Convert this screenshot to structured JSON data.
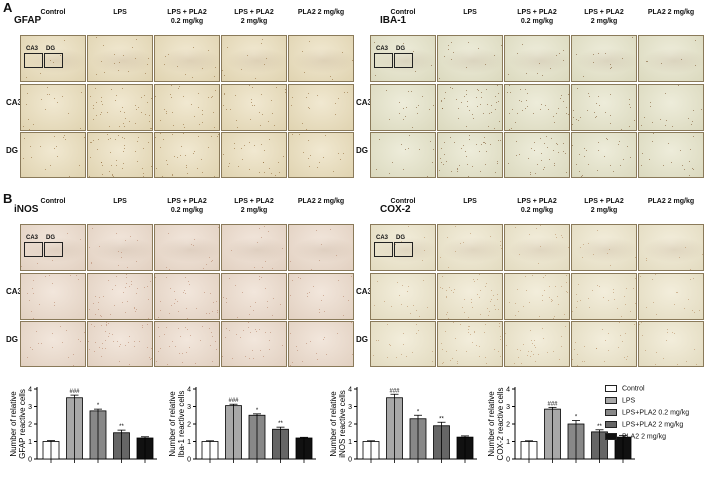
{
  "panels": [
    {
      "letter": "A",
      "title": "GFAP"
    },
    {
      "letter": "",
      "title": "IBA-1"
    },
    {
      "letter": "B",
      "title": "iNOS"
    },
    {
      "letter": "",
      "title": "COX-2"
    }
  ],
  "column_headers": [
    "Control",
    "LPS",
    "LPS + PLA2\n0.2 mg/kg",
    "LPS + PLA2\n2 mg/kg",
    "PLA2 2 mg/kg"
  ],
  "row_labels": [
    "CA3",
    "DG"
  ],
  "roi_labels": [
    "CA3",
    "DG"
  ],
  "legend": {
    "items": [
      "Control",
      "LPS",
      "LPS+PLA2 0.2 mg/kg",
      "LPS+PLA2 2 mg/kg",
      "PLA2 2 mg/kg"
    ],
    "colors": [
      "#ffffff",
      "#a8a8a8",
      "#888888",
      "#666666",
      "#111111"
    ]
  },
  "chart_data": [
    {
      "type": "bar",
      "ylabel": "Number of relative\nGFAP reactive cells",
      "categories": [
        "Control",
        "LPS",
        "LPS+PLA2 0.2 mg/kg",
        "LPS+PLA2 2 mg/kg",
        "PLA2 2 mg/kg"
      ],
      "values": [
        1.0,
        3.5,
        2.75,
        1.5,
        1.2
      ],
      "errors": [
        0.05,
        0.15,
        0.1,
        0.15,
        0.07
      ],
      "ylim": [
        0,
        4
      ],
      "yticks": [
        "0",
        "1",
        "2",
        "3",
        "4"
      ],
      "annotations": [
        "",
        "###",
        "*",
        "**",
        ""
      ]
    },
    {
      "type": "bar",
      "ylabel": "Number of relative\nIba-1 reactive cells",
      "categories": [
        "Control",
        "LPS",
        "LPS+PLA2 0.2 mg/kg",
        "LPS+PLA2 2 mg/kg",
        "PLA2 2 mg/kg"
      ],
      "values": [
        1.0,
        3.05,
        2.5,
        1.7,
        1.2
      ],
      "errors": [
        0.04,
        0.08,
        0.08,
        0.12,
        0.04
      ],
      "ylim": [
        0,
        4
      ],
      "yticks": [
        "0",
        "1",
        "2",
        "3",
        "4"
      ],
      "annotations": [
        "",
        "###",
        "*",
        "**",
        ""
      ]
    },
    {
      "type": "bar",
      "ylabel": "Number of relative\niNOS reactive cells",
      "categories": [
        "Control",
        "LPS",
        "LPS+PLA2 0.2 mg/kg",
        "LPS+PLA2 2 mg/kg",
        "PLA2 2 mg/kg"
      ],
      "values": [
        1.0,
        3.5,
        2.3,
        1.9,
        1.25
      ],
      "errors": [
        0.04,
        0.2,
        0.2,
        0.2,
        0.07
      ],
      "ylim": [
        0,
        4
      ],
      "yticks": [
        "0",
        "1",
        "2",
        "3",
        "4"
      ],
      "annotations": [
        "",
        "###",
        "*",
        "**",
        ""
      ]
    },
    {
      "type": "bar",
      "ylabel": "Number of relative\nCOX-2 reactive cells",
      "categories": [
        "Control",
        "LPS",
        "LPS+PLA2 0.2 mg/kg",
        "LPS+PLA2 2 mg/kg",
        "PLA2 2 mg/kg"
      ],
      "values": [
        1.0,
        2.85,
        2.0,
        1.55,
        1.25
      ],
      "errors": [
        0.04,
        0.1,
        0.2,
        0.12,
        0.1
      ],
      "ylim": [
        0,
        4
      ],
      "yticks": [
        "0",
        "1",
        "2",
        "3",
        "4"
      ],
      "annotations": [
        "",
        "###",
        "*",
        "**",
        ""
      ]
    }
  ]
}
